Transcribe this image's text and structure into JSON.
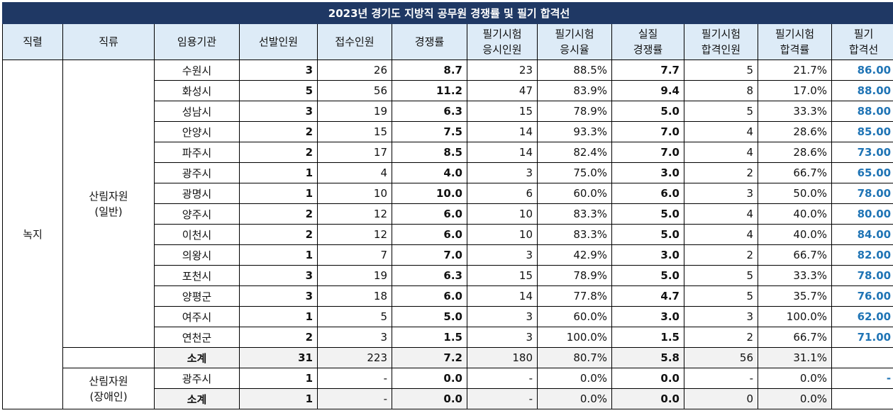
{
  "title": "2023년 경기도 지방직 공무원 경쟁률 및 필기 합격선",
  "headers": [
    "직렬",
    "직류",
    "임용기관",
    "선발인원",
    "접수인원",
    "경쟁률",
    "필기시험\n응시인원",
    "필기시험\n응시율",
    "실질\n경쟁률",
    "필기시험\n합격인원",
    "필기시험\n합격률",
    "필기\n합격선"
  ],
  "series_name": "녹지",
  "group1": {
    "name": "산림자원\n(일반)",
    "rows": [
      [
        "수원시",
        "3",
        "26",
        "8.7",
        "23",
        "88.5%",
        "7.7",
        "5",
        "21.7%",
        "86.00"
      ],
      [
        "화성시",
        "5",
        "56",
        "11.2",
        "47",
        "83.9%",
        "9.4",
        "8",
        "17.0%",
        "88.00"
      ],
      [
        "성남시",
        "3",
        "19",
        "6.3",
        "15",
        "78.9%",
        "5.0",
        "5",
        "33.3%",
        "88.00"
      ],
      [
        "안양시",
        "2",
        "15",
        "7.5",
        "14",
        "93.3%",
        "7.0",
        "4",
        "28.6%",
        "85.00"
      ],
      [
        "파주시",
        "2",
        "17",
        "8.5",
        "14",
        "82.4%",
        "7.0",
        "4",
        "28.6%",
        "73.00"
      ],
      [
        "광주시",
        "1",
        "4",
        "4.0",
        "3",
        "75.0%",
        "3.0",
        "2",
        "66.7%",
        "65.00"
      ],
      [
        "광명시",
        "1",
        "10",
        "10.0",
        "6",
        "60.0%",
        "6.0",
        "3",
        "50.0%",
        "78.00"
      ],
      [
        "양주시",
        "2",
        "12",
        "6.0",
        "10",
        "83.3%",
        "5.0",
        "4",
        "40.0%",
        "80.00"
      ],
      [
        "이천시",
        "2",
        "12",
        "6.0",
        "10",
        "83.3%",
        "5.0",
        "4",
        "40.0%",
        "84.00"
      ],
      [
        "의왕시",
        "1",
        "7",
        "7.0",
        "3",
        "42.9%",
        "3.0",
        "2",
        "66.7%",
        "82.00"
      ],
      [
        "포천시",
        "3",
        "19",
        "6.3",
        "15",
        "78.9%",
        "5.0",
        "5",
        "33.3%",
        "78.00"
      ],
      [
        "양평군",
        "3",
        "18",
        "6.0",
        "14",
        "77.8%",
        "4.7",
        "5",
        "35.7%",
        "76.00"
      ],
      [
        "여주시",
        "1",
        "5",
        "5.0",
        "3",
        "60.0%",
        "3.0",
        "3",
        "100.0%",
        "62.00"
      ],
      [
        "연천군",
        "2",
        "3",
        "1.5",
        "3",
        "100.0%",
        "1.5",
        "2",
        "66.7%",
        "71.00"
      ]
    ],
    "subtotal": [
      "소계",
      "31",
      "223",
      "7.2",
      "180",
      "80.7%",
      "5.8",
      "56",
      "31.1%",
      ""
    ]
  },
  "group2": {
    "name": "산림자원\n(장애인)",
    "rows": [
      [
        "광주시",
        "1",
        "-",
        "0.0",
        "-",
        "0.0%",
        "0.0",
        "-",
        "0.0%",
        "-"
      ]
    ],
    "subtotal": [
      "소계",
      "1",
      "-",
      "0.0",
      "-",
      "0.0%",
      "0.0",
      "0",
      "0.0%",
      ""
    ]
  }
}
